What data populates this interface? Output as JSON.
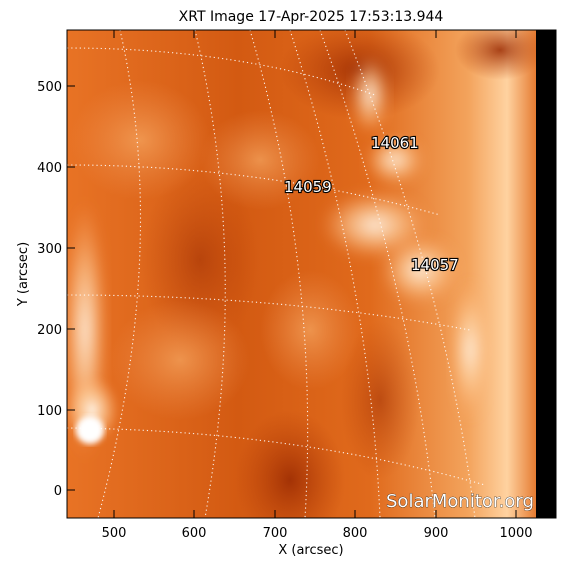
{
  "title": "XRT Image 17-Apr-2025 17:53:13.944",
  "axes": {
    "xlabel": "X (arcsec)",
    "ylabel": "Y (arcsec)",
    "x_ticks": [
      "500",
      "600",
      "700",
      "800",
      "900",
      "1000"
    ],
    "y_ticks": [
      "0",
      "100",
      "200",
      "300",
      "400",
      "500"
    ]
  },
  "active_regions": [
    "14061",
    "14059",
    "14057"
  ],
  "watermark": "SolarMonitor.org",
  "colors": {
    "solar_bright": "#ffe9cf",
    "solar_mid": "#e06a1c",
    "solar_dark": "#a73104",
    "grid": "#ffffff"
  }
}
